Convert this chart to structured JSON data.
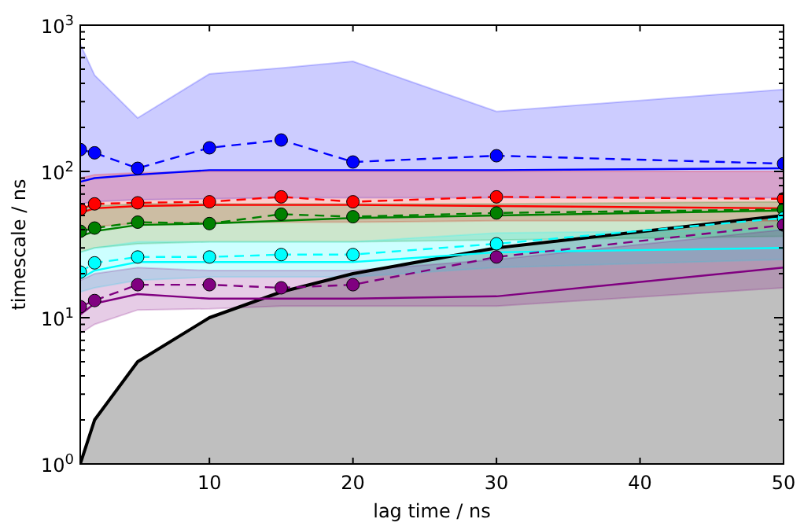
{
  "chart_data": {
    "type": "line",
    "xlabel": "lag time / ns",
    "ylabel": "timescale / ns",
    "log": "y",
    "grid": false,
    "x": [
      1,
      2,
      5,
      10,
      15,
      20,
      30,
      50
    ],
    "xlim": [
      1,
      50
    ],
    "xticks": [
      10,
      20,
      30,
      40,
      50
    ],
    "ylim": [
      1,
      1000
    ],
    "yticks": [
      {
        "value": 1,
        "label": "10$^{0}$"
      },
      {
        "value": 10,
        "label": "10$^{1}$"
      },
      {
        "value": 100,
        "label": "10$^{2}$"
      },
      {
        "value": 1000,
        "label": "10$^{3}$"
      }
    ],
    "series": [
      {
        "type": "area",
        "color": "#000000",
        "values": [
          1,
          2,
          5,
          10,
          15,
          20,
          30,
          50
        ]
      },
      {
        "color": "#0000ff",
        "line_style": "solid",
        "marker": "none",
        "values": [
          85,
          90,
          95,
          102,
          102,
          102,
          102,
          105
        ],
        "lower": [
          60,
          62,
          64,
          65,
          66,
          66,
          66,
          66
        ],
        "upper": [
          744,
          455,
          232,
          464,
          510,
          565,
          257,
          363
        ]
      },
      {
        "color": "#ff0000",
        "line_style": "solid",
        "marker": "none",
        "values": [
          52,
          56,
          58,
          59,
          59,
          59,
          58,
          56
        ],
        "lower": [
          40,
          42,
          44,
          45,
          45,
          45,
          46,
          46
        ],
        "upper": [
          90,
          95,
          98,
          100,
          100,
          100,
          100,
          100
        ]
      },
      {
        "color": "#008000",
        "line_style": "solid",
        "marker": "none",
        "values": [
          36,
          39,
          43,
          44,
          46,
          48,
          50,
          54
        ],
        "lower": [
          28,
          30,
          32,
          33,
          33,
          33,
          34,
          36
        ],
        "upper": [
          55,
          58,
          60,
          60,
          60,
          60,
          60,
          62
        ]
      },
      {
        "color": "#00ffff",
        "line_style": "solid",
        "marker": "none",
        "values": [
          18.5,
          21,
          24,
          24,
          24,
          24,
          28,
          30
        ],
        "lower": [
          15,
          16,
          18,
          19,
          19,
          19,
          22,
          25
        ],
        "upper": [
          28,
          30,
          33,
          33,
          33,
          33,
          38,
          40
        ]
      },
      {
        "color": "#800080",
        "line_style": "solid",
        "marker": "none",
        "values": [
          10.5,
          12.5,
          14.5,
          13.5,
          13.5,
          13.5,
          14,
          22
        ],
        "lower": [
          7.8,
          9,
          11.3,
          11.5,
          12,
          12,
          12,
          16
        ],
        "upper": [
          18,
          20,
          22,
          21,
          21,
          21,
          25,
          40
        ]
      },
      {
        "color": "#0000ff",
        "line_style": "dashed",
        "marker": "circle",
        "values": [
          141,
          134,
          105,
          145,
          164,
          116,
          128,
          113
        ]
      },
      {
        "color": "#ff0000",
        "line_style": "dashed",
        "marker": "circle",
        "values": [
          55,
          60,
          61,
          62,
          67,
          62,
          67,
          65
        ]
      },
      {
        "color": "#008000",
        "line_style": "dashed",
        "marker": "circle",
        "values": [
          39,
          41,
          45,
          44,
          51,
          49,
          52,
          55
        ]
      },
      {
        "color": "#00ffff",
        "line_style": "dashed",
        "marker": "circle",
        "values": [
          20.5,
          23.7,
          26,
          26,
          27,
          27,
          32,
          48
        ]
      },
      {
        "color": "#800080",
        "line_style": "dashed",
        "marker": "circle",
        "values": [
          11.9,
          13.1,
          16.8,
          16.8,
          16,
          16.8,
          26,
          43
        ]
      }
    ]
  }
}
